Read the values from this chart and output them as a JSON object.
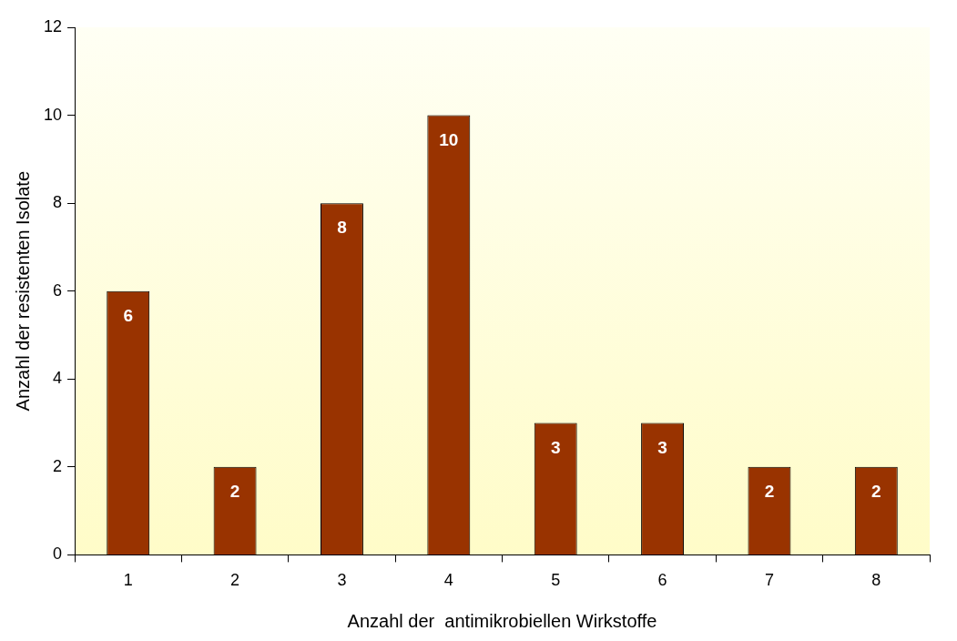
{
  "chart_data": {
    "type": "bar",
    "xlabel": "Anzahl der  antimikrobiellen Wirkstoffe",
    "ylabel": "Anzahl der resistenten Isolate",
    "categories": [
      "1",
      "2",
      "3",
      "4",
      "5",
      "6",
      "7",
      "8"
    ],
    "values": [
      6,
      2,
      8,
      10,
      3,
      3,
      2,
      2
    ],
    "color": "#993300",
    "ylim": [
      0,
      12
    ],
    "yticks": [
      0,
      2,
      4,
      6,
      8,
      10,
      12
    ],
    "grid": false,
    "legend": false,
    "data_labels": true
  }
}
